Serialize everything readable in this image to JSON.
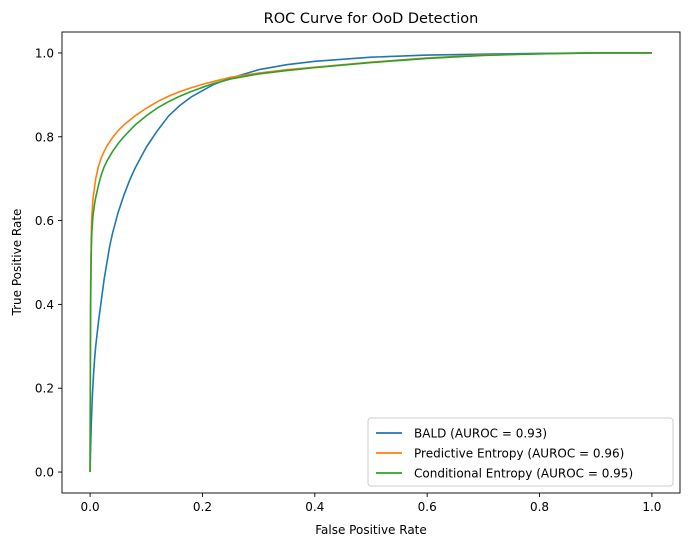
{
  "chart_data": {
    "type": "line",
    "title": "ROC Curve for OoD Detection",
    "xlabel": "False Positive Rate",
    "ylabel": "True Positive Rate",
    "xlim": [
      -0.05,
      1.05
    ],
    "ylim": [
      -0.05,
      1.05
    ],
    "xticks": [
      0.0,
      0.2,
      0.4,
      0.6,
      0.8,
      1.0
    ],
    "xtick_labels": [
      "0.0",
      "0.2",
      "0.4",
      "0.6",
      "0.8",
      "1.0"
    ],
    "yticks": [
      0.0,
      0.2,
      0.4,
      0.6,
      0.8,
      1.0
    ],
    "ytick_labels": [
      "0.0",
      "0.2",
      "0.4",
      "0.6",
      "0.8",
      "1.0"
    ],
    "grid": false,
    "legend_position": "lower-right",
    "series": [
      {
        "name": "BALD (AUROC = 0.93)",
        "color": "#1f77b4",
        "x": [
          0.0,
          0.001,
          0.002,
          0.004,
          0.006,
          0.008,
          0.01,
          0.015,
          0.02,
          0.025,
          0.03,
          0.035,
          0.04,
          0.05,
          0.06,
          0.07,
          0.08,
          0.09,
          0.1,
          0.12,
          0.14,
          0.16,
          0.18,
          0.2,
          0.22,
          0.25,
          0.3,
          0.35,
          0.4,
          0.5,
          0.6,
          0.7,
          0.8,
          0.9,
          1.0
        ],
        "y": [
          0.0,
          0.06,
          0.11,
          0.18,
          0.23,
          0.27,
          0.3,
          0.36,
          0.41,
          0.46,
          0.5,
          0.54,
          0.57,
          0.62,
          0.66,
          0.695,
          0.725,
          0.75,
          0.775,
          0.815,
          0.85,
          0.875,
          0.895,
          0.91,
          0.925,
          0.94,
          0.96,
          0.972,
          0.98,
          0.99,
          0.995,
          0.997,
          0.999,
          1.0,
          1.0
        ]
      },
      {
        "name": "Predictive Entropy (AUROC = 0.96)",
        "color": "#ff7f0e",
        "x": [
          0.0,
          0.0005,
          0.001,
          0.002,
          0.003,
          0.005,
          0.008,
          0.01,
          0.015,
          0.02,
          0.025,
          0.03,
          0.04,
          0.05,
          0.06,
          0.08,
          0.1,
          0.12,
          0.14,
          0.16,
          0.18,
          0.2,
          0.22,
          0.25,
          0.3,
          0.35,
          0.4,
          0.5,
          0.6,
          0.7,
          0.8,
          0.9,
          1.0
        ],
        "y": [
          0.0,
          0.3,
          0.45,
          0.56,
          0.61,
          0.65,
          0.68,
          0.7,
          0.73,
          0.75,
          0.765,
          0.778,
          0.798,
          0.815,
          0.828,
          0.85,
          0.868,
          0.884,
          0.897,
          0.908,
          0.917,
          0.925,
          0.932,
          0.942,
          0.952,
          0.96,
          0.966,
          0.978,
          0.988,
          0.995,
          0.998,
          1.0,
          1.0
        ]
      },
      {
        "name": "Conditional Entropy (AUROC = 0.95)",
        "color": "#2ca02c",
        "x": [
          0.0,
          0.0005,
          0.001,
          0.002,
          0.003,
          0.005,
          0.008,
          0.01,
          0.015,
          0.02,
          0.025,
          0.03,
          0.04,
          0.05,
          0.06,
          0.08,
          0.1,
          0.12,
          0.14,
          0.16,
          0.18,
          0.2,
          0.22,
          0.25,
          0.3,
          0.35,
          0.4,
          0.5,
          0.6,
          0.7,
          0.8,
          0.9,
          1.0
        ],
        "y": [
          0.0,
          0.25,
          0.4,
          0.52,
          0.57,
          0.61,
          0.64,
          0.655,
          0.685,
          0.71,
          0.728,
          0.742,
          0.765,
          0.784,
          0.8,
          0.828,
          0.85,
          0.869,
          0.884,
          0.897,
          0.908,
          0.918,
          0.927,
          0.938,
          0.95,
          0.958,
          0.965,
          0.977,
          0.987,
          0.994,
          0.998,
          1.0,
          1.0
        ]
      }
    ]
  }
}
